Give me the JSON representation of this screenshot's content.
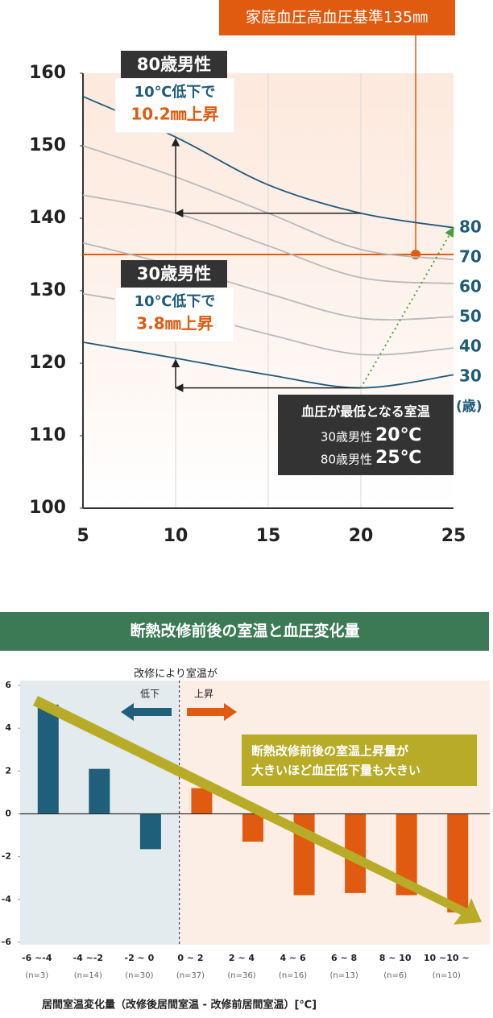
{
  "chart_data": [
    {
      "type": "line",
      "x": [
        5,
        10,
        15,
        20,
        25
      ],
      "xlim": [
        5,
        25
      ],
      "xticks": [
        5,
        10,
        15,
        20,
        25
      ],
      "ylim": [
        100,
        160
      ],
      "yticks": [
        100,
        110,
        120,
        130,
        140,
        150,
        160
      ],
      "series": [
        {
          "name": "80",
          "color": "#1f5b78",
          "values": [
            156.8,
            151.2,
            144.6,
            140.7,
            138.7
          ]
        },
        {
          "name": "70",
          "color": "#b9b9b9",
          "values": [
            150,
            145.7,
            140.7,
            135.7,
            134.3
          ]
        },
        {
          "name": "60",
          "color": "#b9b9b9",
          "values": [
            143.2,
            140.7,
            136.2,
            131.8,
            131
          ]
        },
        {
          "name": "50",
          "color": "#b9b9b9",
          "values": [
            136.6,
            133.4,
            129.6,
            126.2,
            126.4
          ]
        },
        {
          "name": "40",
          "color": "#b9b9b9",
          "values": [
            129.6,
            127.3,
            124,
            121.2,
            122.1
          ]
        },
        {
          "name": "30",
          "color": "#1f5b78",
          "values": [
            122.9,
            120.7,
            118.4,
            116.6,
            118.4
          ]
        }
      ],
      "series_unit": "(歳)",
      "threshold": {
        "value": 135,
        "label": "家庭血圧高血圧基準135㎜",
        "color": "#e05a10"
      },
      "annotations": {
        "age80": {
          "title": "80歳男性",
          "line1": "10℃低下で",
          "line2": "10.2㎜上昇"
        },
        "age30": {
          "title": "30歳男性",
          "line1": "10℃低下で",
          "line2": "3.8㎜上昇"
        },
        "minimum": {
          "title": "血圧が最低となる室温",
          "rows": [
            [
              "30歳男性",
              "20℃"
            ],
            [
              "80歳男性",
              "25℃"
            ]
          ]
        }
      }
    },
    {
      "type": "bar",
      "title": "断熱改修前後の室温と血圧変化量",
      "categories": [
        "-6 ~-4",
        "-4 ~-2",
        "-2 ~ 0",
        "0 ~ 2",
        "2 ~ 4",
        "4 ~ 6",
        "6 ~ 8",
        "8 ~ 10",
        "10 ~10 ~"
      ],
      "sample_sizes": [
        "(n=3)",
        "(n=14)",
        "(n=30)",
        "(n=37)",
        "(n=36)",
        "(n=16)",
        "(n=13)",
        "(n=6)",
        "(n=10)"
      ],
      "values": [
        5.1,
        2.1,
        -1.65,
        1.2,
        -1.3,
        -3.8,
        -3.7,
        -3.8,
        -4.6
      ],
      "colors": [
        "#1f5f7a",
        "#1f5f7a",
        "#1f5f7a",
        "#e05a10",
        "#e05a10",
        "#e05a10",
        "#e05a10",
        "#e05a10",
        "#e05a10"
      ],
      "ylim": [
        -6,
        6
      ],
      "yticks": [
        -6,
        -4,
        -2,
        0,
        2,
        4,
        6
      ],
      "x_label": "居間室温変化量（改修後居間室温 - 改修前居間室温）[℃]",
      "annotations": {
        "heading": "改修により室温が",
        "down": "低下",
        "up": "上昇",
        "callout": [
          "断熱改修前後の室温上昇量が",
          "大きいほど血圧低下量も大きい"
        ]
      }
    }
  ]
}
